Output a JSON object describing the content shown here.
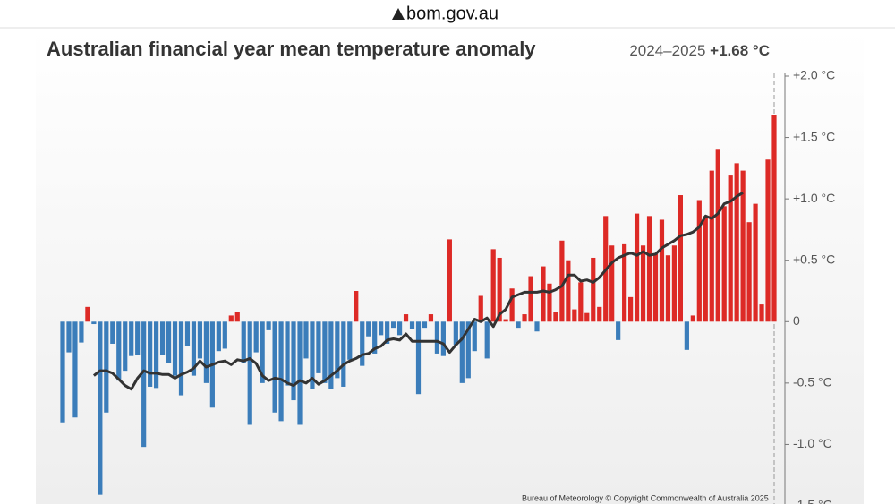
{
  "header": {
    "site": "bom.gov.au"
  },
  "chart_data": {
    "type": "bar",
    "title": "Australian financial year mean temperature anomaly",
    "subtitle_period": "2024–2025",
    "subtitle_value": "+1.68 °C",
    "credit": "Bureau of Meteorology © Copyright Commonwealth of Australia 2025",
    "values": [
      -0.82,
      -0.25,
      -0.78,
      -0.17,
      0.12,
      -0.02,
      -1.41,
      -0.74,
      -0.18,
      -0.48,
      -0.4,
      -0.28,
      -0.27,
      -1.02,
      -0.53,
      -0.54,
      -0.27,
      -0.34,
      -0.44,
      -0.6,
      -0.2,
      -0.44,
      -0.3,
      -0.5,
      -0.7,
      -0.24,
      -0.22,
      0.05,
      0.08,
      -0.34,
      -0.84,
      -0.25,
      -0.5,
      -0.07,
      -0.74,
      -0.81,
      -0.52,
      -0.64,
      -0.84,
      -0.3,
      -0.55,
      -0.42,
      -0.5,
      -0.55,
      -0.46,
      -0.53,
      -0.31,
      0.25,
      -0.36,
      -0.12,
      -0.26,
      -0.11,
      -0.18,
      -0.05,
      -0.11,
      0.06,
      -0.06,
      -0.59,
      -0.05,
      0.06,
      -0.26,
      -0.28,
      0.67,
      -0.19,
      -0.5,
      -0.46,
      -0.24,
      0.21,
      -0.3,
      0.59,
      0.52,
      0.02,
      0.27,
      -0.05,
      0.06,
      0.37,
      -0.08,
      0.45,
      0.31,
      0.08,
      0.66,
      0.5,
      0.1,
      0.32,
      0.07,
      0.52,
      0.12,
      0.86,
      0.62,
      -0.15,
      0.63,
      0.2,
      0.88,
      0.62,
      0.86,
      0.55,
      0.83,
      0.54,
      0.62,
      1.03,
      -0.23,
      0.05,
      0.99,
      0.86,
      1.23,
      1.4,
      0.94,
      1.19,
      1.29,
      1.23,
      0.81,
      0.96,
      0.14,
      1.32,
      1.68
    ],
    "rolling_mean": [
      null,
      null,
      null,
      null,
      null,
      -0.44,
      -0.4,
      -0.4,
      -0.42,
      -0.47,
      -0.52,
      -0.55,
      -0.46,
      -0.4,
      -0.42,
      -0.42,
      -0.43,
      -0.43,
      -0.46,
      -0.43,
      -0.41,
      -0.38,
      -0.32,
      -0.37,
      -0.35,
      -0.33,
      -0.32,
      -0.35,
      -0.31,
      -0.32,
      -0.3,
      -0.34,
      -0.44,
      -0.48,
      -0.46,
      -0.47,
      -0.5,
      -0.52,
      -0.48,
      -0.5,
      -0.46,
      -0.51,
      -0.48,
      -0.44,
      -0.4,
      -0.35,
      -0.32,
      -0.3,
      -0.27,
      -0.26,
      -0.22,
      -0.2,
      -0.15,
      -0.14,
      -0.15,
      -0.1,
      -0.16,
      -0.16,
      -0.16,
      -0.16,
      -0.16,
      -0.18,
      -0.25,
      -0.19,
      -0.14,
      -0.06,
      0.02,
      0.0,
      0.03,
      -0.04,
      0.06,
      0.1,
      0.2,
      0.22,
      0.24,
      0.24,
      0.24,
      0.25,
      0.24,
      0.26,
      0.29,
      0.38,
      0.38,
      0.33,
      0.34,
      0.32,
      0.36,
      0.42,
      0.48,
      0.52,
      0.54,
      0.56,
      0.54,
      0.57,
      0.54,
      0.55,
      0.6,
      0.63,
      0.66,
      0.7,
      0.71,
      0.73,
      0.77,
      0.86,
      0.84,
      0.88,
      0.96,
      0.98,
      1.02,
      1.05,
      null,
      null,
      null,
      null,
      null
    ],
    "positive_color": "#dd2a26",
    "negative_color": "#3b7dba",
    "line_color": "#333333",
    "ylim": [
      -1.5,
      2.0
    ],
    "yticks": [
      {
        "value": 2.0,
        "label": "+2.0 °C"
      },
      {
        "value": 1.5,
        "label": "+1.5 °C"
      },
      {
        "value": 1.0,
        "label": "+1.0 °C"
      },
      {
        "value": 0.5,
        "label": "+0.5 °C"
      },
      0,
      {
        "value": -0.5,
        "label": "-0.5 °C"
      },
      {
        "value": -1.0,
        "label": "-1.0 °C"
      },
      {
        "value": -1.5,
        "label": "-1.5 °C"
      }
    ]
  }
}
